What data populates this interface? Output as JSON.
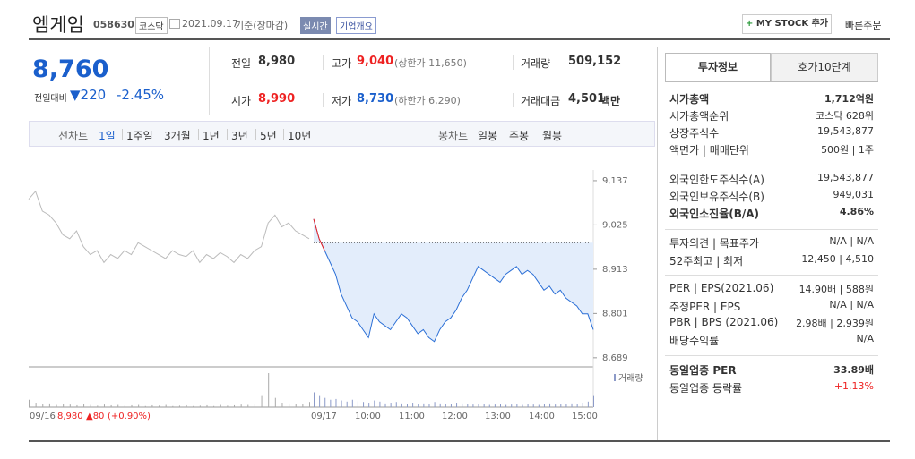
{
  "header": {
    "title": "엠게임",
    "code": "058630",
    "market": "코스닥",
    "date": "2021.09.17",
    "basis": "기준(장마감)",
    "realtime": "실시간",
    "overview": "기업개요",
    "mystock": "MY STOCK 추가",
    "quick_order": "빠른주문"
  },
  "price": {
    "current": "8,760",
    "change_label": "전일대비",
    "change": "220",
    "rate": "-2.45%"
  },
  "summary": [
    {
      "label": "전일",
      "value": "8,980",
      "color": "#333"
    },
    {
      "label": "고가",
      "value": "9,040",
      "note": "(상한가 11,650)",
      "color": "#e22"
    },
    {
      "label": "거래량",
      "value": "509,152",
      "color": "#333"
    },
    {
      "label": "시가",
      "value": "8,990",
      "color": "#e22"
    },
    {
      "label": "저가",
      "value": "8,730",
      "note": "(하한가 6,290)",
      "color": "#1a5fcc"
    },
    {
      "label": "거래대금",
      "value": "4,501",
      "unit": "백만",
      "color": "#333"
    }
  ],
  "toolbar": {
    "line_label": "선차트",
    "periods": [
      "1일",
      "1주일",
      "3개월",
      "1년",
      "3년",
      "5년",
      "10년"
    ],
    "candle_label": "봉차트",
    "candles": [
      "일봉",
      "주봉",
      "월봉"
    ]
  },
  "chart": {
    "ylim": [
      8666,
      9164
    ],
    "yticks": [
      {
        "value": 9137,
        "label": "9,137"
      },
      {
        "value": 9025,
        "label": "9,025"
      },
      {
        "value": 8913,
        "label": "8,913"
      },
      {
        "value": 8801,
        "label": "8,801"
      },
      {
        "value": 8689,
        "label": "8,689"
      }
    ],
    "baseline": 8980,
    "volume_label": "거래량",
    "prev_values": [
      9090,
      9110,
      9060,
      9050,
      9030,
      9000,
      8990,
      9010,
      8970,
      8950,
      8960,
      8930,
      8950,
      8940,
      8960,
      8950,
      8980,
      8970,
      8960,
      8950,
      8940,
      8960,
      8950,
      8945,
      8960,
      8930,
      8950,
      8940,
      8955,
      8945,
      8930,
      8950,
      8940,
      8960,
      8970,
      9030,
      9050,
      9020,
      9030,
      9010,
      9000,
      8990
    ],
    "today_values": [
      9040,
      8990,
      8960,
      8930,
      8900,
      8850,
      8820,
      8790,
      8780,
      8760,
      8740,
      8800,
      8780,
      8770,
      8760,
      8780,
      8800,
      8790,
      8770,
      8750,
      8760,
      8740,
      8730,
      8760,
      8780,
      8790,
      8810,
      8840,
      8860,
      8890,
      8920,
      8910,
      8900,
      8890,
      8880,
      8900,
      8910,
      8920,
      8900,
      8910,
      8900,
      8880,
      8860,
      8870,
      8850,
      8860,
      8840,
      8830,
      8820,
      8800,
      8800,
      8760
    ],
    "prev_volumes": [
      20,
      12,
      8,
      10,
      6,
      9,
      7,
      5,
      8,
      6,
      4,
      7,
      5,
      6,
      4,
      5,
      6,
      3,
      5,
      4,
      6,
      3,
      4,
      5,
      3,
      4,
      5,
      3,
      6,
      4,
      5,
      7,
      6,
      9,
      30,
      92,
      25,
      12,
      10,
      8,
      9,
      14
    ],
    "today_volumes": [
      40,
      30,
      25,
      20,
      22,
      18,
      15,
      20,
      16,
      14,
      12,
      18,
      15,
      10,
      12,
      14,
      10,
      9,
      12,
      8,
      10,
      9,
      14,
      10,
      8,
      9,
      12,
      10,
      8,
      7,
      9,
      8,
      6,
      7,
      8,
      6,
      7,
      9,
      6,
      8,
      7,
      6,
      8,
      10,
      7,
      9,
      8,
      10,
      9,
      12,
      15,
      30
    ],
    "prev_day": {
      "date": "09/16",
      "close": "8,980",
      "change": "▲80",
      "rate": "(+0.90%)"
    },
    "today_date": "09/17",
    "times": [
      "10:00",
      "11:00",
      "12:00",
      "13:00",
      "14:00",
      "15:00"
    ]
  },
  "panel": {
    "tabs": [
      "투자정보",
      "호가10단계"
    ],
    "sections": [
      [
        {
          "label": "시가총액",
          "value": "1,712억원",
          "bold": true
        },
        {
          "label": "시가총액순위",
          "value": "코스닥 628위"
        },
        {
          "label": "상장주식수",
          "value": "19,543,877"
        },
        {
          "label": "액면가 | 매매단위",
          "value": "500원 | 1주"
        }
      ],
      [
        {
          "label": "외국인한도주식수(A)",
          "value": "19,543,877"
        },
        {
          "label": "외국인보유주식수(B)",
          "value": "949,031"
        },
        {
          "label": "외국인소진율(B/A)",
          "value": "4.86%",
          "bold": true
        }
      ],
      [
        {
          "label": "투자의견 | 목표주가",
          "value": "N/A | N/A"
        },
        {
          "label": "52주최고 | 최저",
          "value": "12,450 | 4,510"
        }
      ],
      [
        {
          "label": "PER | EPS(2021.06)",
          "value": "14.90배 | 588원"
        },
        {
          "label": "추정PER | EPS",
          "value": "N/A | N/A"
        },
        {
          "label": "PBR | BPS (2021.06)",
          "value": "2.98배 | 2,939원"
        },
        {
          "label": "배당수익률",
          "value": "N/A"
        }
      ],
      [
        {
          "label": "동일업종 PER",
          "value": "33.89배",
          "bold": true
        },
        {
          "label": "동일업종 등락률",
          "value": "+1.13%",
          "color": "#e22"
        }
      ]
    ]
  }
}
